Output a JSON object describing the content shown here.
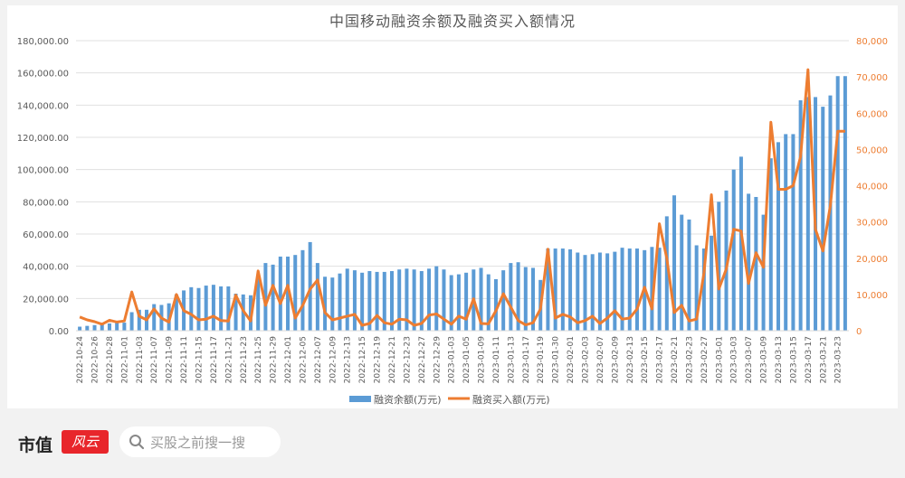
{
  "chart_data": {
    "type": "bar+line",
    "title": "中国移动融资余额及融资买入额情况",
    "xlabel": "",
    "ylabel_left": "",
    "ylabel_right": "",
    "ylim_left": [
      0,
      180000
    ],
    "ylim_right": [
      0,
      80000
    ],
    "left_ticks": [
      "0.00",
      "20,000.00",
      "40,000.00",
      "60,000.00",
      "80,000.00",
      "100,000.00",
      "120,000.00",
      "140,000.00",
      "160,000.00",
      "180,000.00"
    ],
    "right_ticks": [
      "0",
      "10,000",
      "20,000",
      "30,000",
      "40,000",
      "50,000",
      "60,000",
      "70,000",
      "80,000"
    ],
    "grid": true,
    "legend_position": "bottom",
    "x_tick_labels": [
      "2022-10-24",
      "2022-10-26",
      "2022-10-28",
      "2022-11-01",
      "2022-11-03",
      "2022-11-07",
      "2022-11-09",
      "2022-11-11",
      "2022-11-15",
      "2022-11-17",
      "2022-11-21",
      "2022-11-23",
      "2022-11-25",
      "2022-11-29",
      "2022-12-01",
      "2022-12-05",
      "2022-12-07",
      "2022-12-09",
      "2022-12-13",
      "2022-12-15",
      "2022-12-19",
      "2022-12-21",
      "2022-12-23",
      "2022-12-27",
      "2022-12-29",
      "2023-01-03",
      "2023-01-05",
      "2023-01-09",
      "2023-01-11",
      "2023-01-13",
      "2023-01-17",
      "2023-01-19",
      "2023-01-30",
      "2023-02-01",
      "2023-02-03",
      "2023-02-07",
      "2023-02-09",
      "2023-02-13",
      "2023-02-15",
      "2023-02-17",
      "2023-02-21",
      "2023-02-23",
      "2023-02-27",
      "2023-03-01",
      "2023-03-03",
      "2023-03-07",
      "2023-03-09",
      "2023-03-13",
      "2023-03-15",
      "2023-03-17",
      "2023-03-21",
      "2023-03-23"
    ],
    "series": [
      {
        "name": "融资余额(万元)",
        "type": "bar",
        "axis": "left",
        "color": "#5b9bd5",
        "values": [
          2500,
          3000,
          3500,
          4000,
          4500,
          4800,
          5000,
          11500,
          13000,
          13000,
          16500,
          16000,
          17000,
          22500,
          25000,
          27000,
          26500,
          28000,
          28500,
          27500,
          27500,
          23000,
          22500,
          22000,
          33000,
          42000,
          41000,
          46000,
          46000,
          47000,
          50000,
          55000,
          42000,
          33500,
          33000,
          35500,
          38500,
          37500,
          36000,
          37000,
          36500,
          36500,
          37000,
          38000,
          38500,
          38000,
          37000,
          38500,
          40000,
          38000,
          34500,
          35000,
          36000,
          38000,
          39000,
          35000,
          32000,
          37500,
          42000,
          42500,
          39500,
          39000,
          31500,
          51000,
          51000,
          51000,
          50500,
          48500,
          47000,
          47500,
          48500,
          48000,
          49000,
          51500,
          51000,
          51000,
          50000,
          52000,
          51500,
          71000,
          84000,
          72000,
          69000,
          53000,
          51000,
          59000,
          80000,
          87000,
          100000,
          108000,
          85000,
          83000,
          72000,
          107000,
          117000,
          122000,
          122000,
          143000,
          145000,
          145000,
          139000,
          146000,
          158000,
          158000
        ]
      },
      {
        "name": "融资买入额(万元)",
        "type": "line",
        "axis": "right",
        "color": "#ed7d31",
        "values": [
          3800,
          3000,
          2500,
          1800,
          2900,
          2400,
          2700,
          10700,
          4000,
          3000,
          6000,
          3500,
          2400,
          10000,
          5500,
          4500,
          3000,
          3200,
          4000,
          2800,
          2700,
          9800,
          5500,
          2700,
          16500,
          7000,
          12500,
          7500,
          12500,
          3500,
          7000,
          11500,
          14000,
          5000,
          3000,
          3500,
          4000,
          4500,
          1500,
          2000,
          4200,
          2200,
          1800,
          3200,
          3000,
          1500,
          2000,
          4300,
          4600,
          3200,
          1800,
          4000,
          3200,
          8800,
          2000,
          1900,
          5500,
          10200,
          6500,
          2800,
          1600,
          2200,
          6000,
          22500,
          3500,
          4500,
          3800,
          2200,
          2800,
          4000,
          2000,
          3500,
          5500,
          3200,
          3500,
          6000,
          12000,
          6000,
          29500,
          20000,
          5000,
          7000,
          2700,
          3200,
          16000,
          37500,
          11500,
          17000,
          28000,
          27500,
          13000,
          21500,
          17500,
          57500,
          39000,
          39000,
          40000,
          48000,
          72000,
          28000,
          22000,
          34500,
          55000,
          55000
        ]
      }
    ]
  },
  "legend": {
    "bar_label": "融资余额(万元)",
    "line_label": "融资买入额(万元)"
  },
  "footer": {
    "brand_text": "市值",
    "brand_logo_text": "风云",
    "search_placeholder": "买股之前搜一搜"
  },
  "colors": {
    "bar": "#5b9bd5",
    "line": "#ed7d31",
    "right_axis_text": "#ed7d31",
    "left_axis_text": "#595959",
    "grid": "#e0e0e0"
  }
}
